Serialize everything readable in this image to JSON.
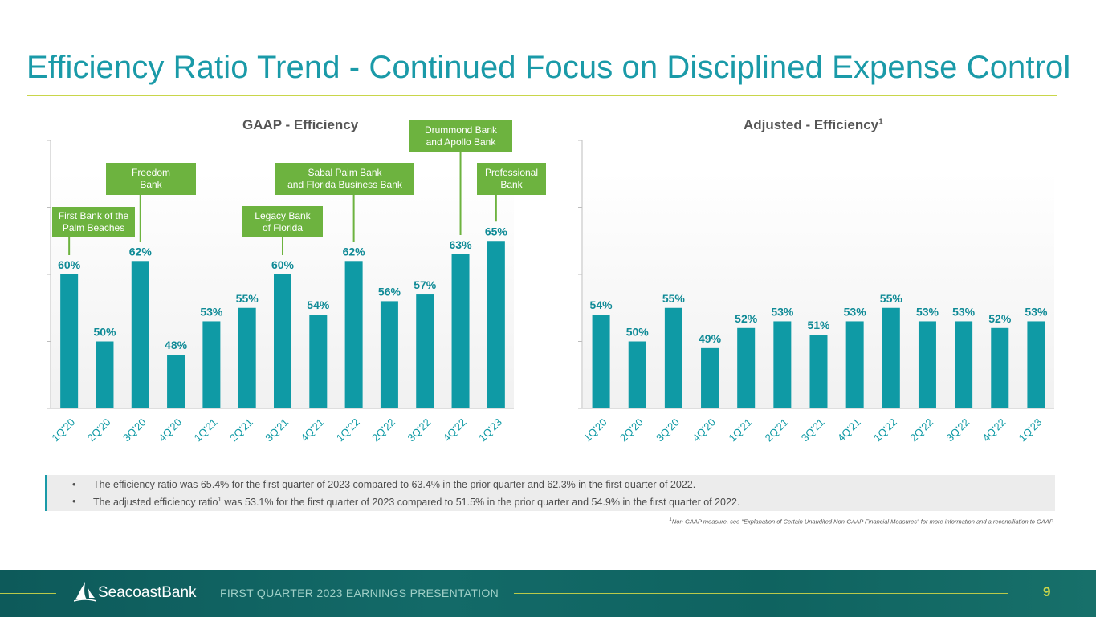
{
  "slide": {
    "title": "Efficiency Ratio Trend - Continued Focus on Disciplined Expense Control",
    "page_number": "9",
    "footer_title": "FIRST QUARTER 2023 EARNINGS PRESENTATION",
    "brand": "SeacoastBank",
    "colors": {
      "accent": "#1a9aa8",
      "bar": "#0f9aa5",
      "label": "#0f8a96",
      "acquisition": "#6db33f",
      "rule": "#c9d64a"
    }
  },
  "chart_data": [
    {
      "type": "bar",
      "title": "GAAP - Efficiency",
      "categories": [
        "1Q'20",
        "2Q'20",
        "3Q'20",
        "4Q'20",
        "1Q'21",
        "2Q'21",
        "3Q'21",
        "4Q'21",
        "1Q'22",
        "2Q'22",
        "3Q'22",
        "4Q'22",
        "1Q'23"
      ],
      "values": [
        60,
        50,
        62,
        48,
        53,
        55,
        60,
        54,
        62,
        56,
        57,
        63,
        65
      ],
      "data_labels": [
        "60%",
        "50%",
        "62%",
        "48%",
        "53%",
        "55%",
        "60%",
        "54%",
        "62%",
        "56%",
        "57%",
        "63%",
        "65%"
      ],
      "ylim": [
        40,
        80
      ],
      "grid": false,
      "annotations": [
        {
          "category_index": 0,
          "text": [
            "First Bank of the",
            "Palm Beaches"
          ]
        },
        {
          "category_index": 2,
          "text": [
            "Freedom",
            "Bank"
          ]
        },
        {
          "category_index": 6,
          "text": [
            "Legacy Bank",
            "of Florida"
          ]
        },
        {
          "category_index": 8,
          "text": [
            "Sabal Palm Bank",
            "and Florida Business Bank"
          ]
        },
        {
          "category_index": 11,
          "text": [
            "Drummond Bank",
            "and Apollo Bank"
          ]
        },
        {
          "category_index": 12,
          "text": [
            "Professional",
            "Bank"
          ]
        }
      ]
    },
    {
      "type": "bar",
      "title": "Adjusted - Efficiency",
      "title_superscript": "1",
      "categories": [
        "1Q'20",
        "2Q'20",
        "3Q'20",
        "4Q'20",
        "1Q'21",
        "2Q'21",
        "3Q'21",
        "4Q'21",
        "1Q'22",
        "2Q'22",
        "3Q'22",
        "4Q'22",
        "1Q'23"
      ],
      "values": [
        54,
        50,
        55,
        49,
        52,
        53,
        51,
        53,
        55,
        53,
        53,
        52,
        53
      ],
      "data_labels": [
        "54%",
        "50%",
        "55%",
        "49%",
        "52%",
        "53%",
        "51%",
        "53%",
        "55%",
        "53%",
        "53%",
        "52%",
        "53%"
      ],
      "ylim": [
        40,
        80
      ],
      "grid": false
    }
  ],
  "notes": [
    {
      "bullet": "•",
      "text": "The efficiency ratio was 65.4% for the first quarter of 2023 compared to 63.4% in the prior quarter and 62.3% in the first quarter of 2022."
    },
    {
      "bullet": "•",
      "text_before": "The adjusted efficiency ratio",
      "superscript": "1",
      "text_after": " was 53.1% for the first quarter of 2023 compared to 51.5% in the prior quarter and 54.9% in the first quarter of 2022."
    }
  ],
  "footnote": {
    "superscript": "1",
    "text": "Non-GAAP measure, see \"Explanation of Certain Unaudited Non-GAAP Financial Measures\" for more information and a reconciliation to GAAP."
  }
}
